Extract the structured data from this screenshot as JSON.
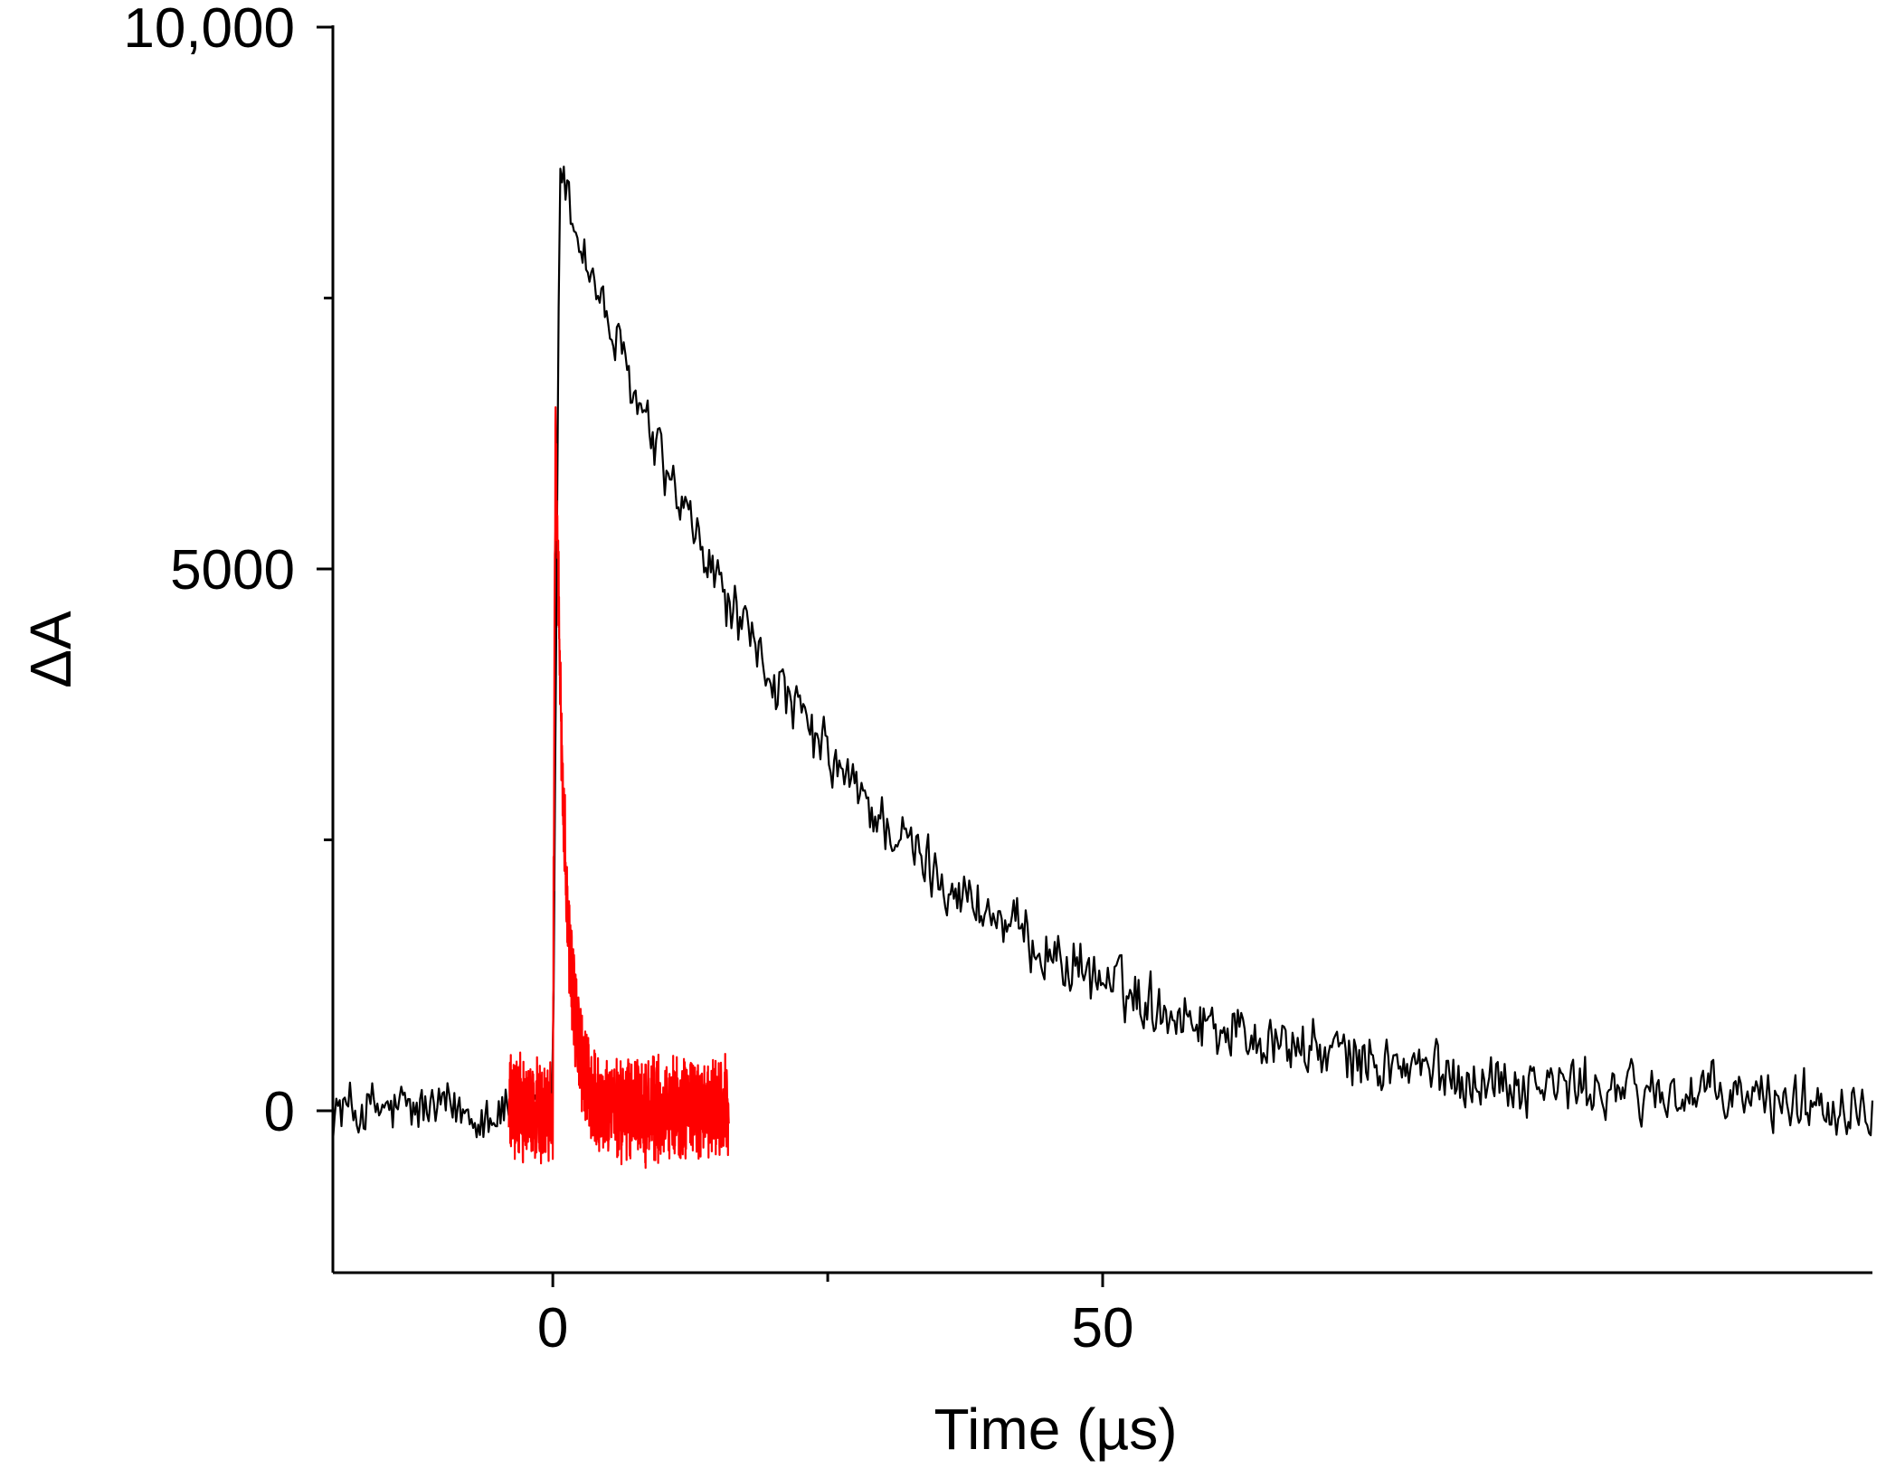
{
  "chart_data": {
    "type": "line",
    "xlabel": "Time (µs)",
    "ylabel": "ΔA",
    "xlim": [
      -20,
      120
    ],
    "ylim": [
      -1500,
      10000
    ],
    "x_ticks": [
      {
        "value": 0,
        "label": "0"
      },
      {
        "value": 50,
        "label": "50"
      }
    ],
    "x_minor_ticks": [
      25
    ],
    "y_ticks": [
      {
        "value": 0,
        "label": "0"
      },
      {
        "value": 5000,
        "label": "5000"
      },
      {
        "value": 10000,
        "label": "10,000"
      }
    ],
    "y_minor_ticks": [
      2500,
      7500
    ],
    "grid": false,
    "legend": "none",
    "series": [
      {
        "color": "#000000",
        "x_range": [
          -20,
          120
        ],
        "baseline": 0,
        "rise_at": 0,
        "peak": 8600,
        "decay_tau": 25,
        "noise_amplitude": 350
      },
      {
        "color": "#ff0000",
        "x_range": [
          -4,
          16
        ],
        "baseline": 0,
        "rise_at": 0,
        "peak": 6700,
        "decay_tau": 0.9,
        "noise_amplitude": 420
      }
    ]
  }
}
